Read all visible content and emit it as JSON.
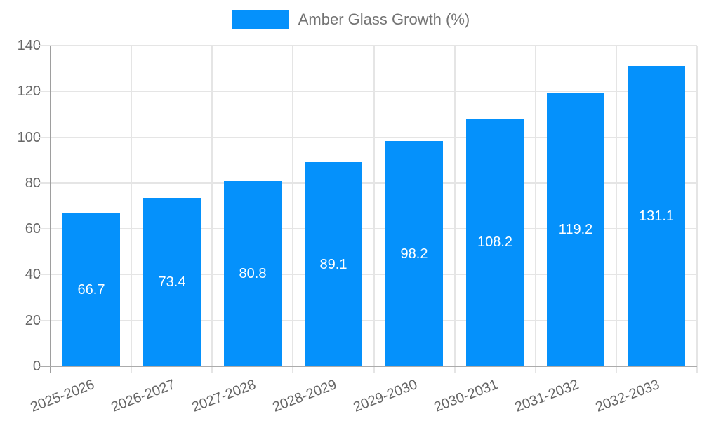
{
  "chart_data": {
    "type": "bar",
    "title": "",
    "legend": {
      "label": "Amber Glass Growth (%)",
      "position": "top",
      "marker": "rect"
    },
    "categories": [
      "2025-2026",
      "2026-2027",
      "2027-2028",
      "2028-2029",
      "2029-2030",
      "2030-2031",
      "2031-2032",
      "2032-2033"
    ],
    "series": [
      {
        "name": "Amber Glass Growth (%)",
        "values": [
          66.7,
          73.4,
          80.8,
          89.1,
          98.2,
          108.2,
          119.2,
          131.1
        ],
        "value_labels": [
          "66.7",
          "73.4",
          "80.8",
          "89.1",
          "98.2",
          "108.2",
          "119.2",
          "131.1"
        ]
      }
    ],
    "xlabel": "",
    "ylabel": "",
    "ylim": [
      0,
      140
    ],
    "yticks": [
      0,
      20,
      40,
      60,
      80,
      100,
      120,
      140
    ],
    "grid": true,
    "colors": {
      "bar": "#0591fb",
      "bar_value_label": "#ffffff",
      "axis_text": "#666666",
      "legend_text": "#737373",
      "gridline": "#e5e5e5",
      "axis_line": "#9e9e9e",
      "baseline": "#ababab",
      "background": "#ffffff"
    }
  }
}
